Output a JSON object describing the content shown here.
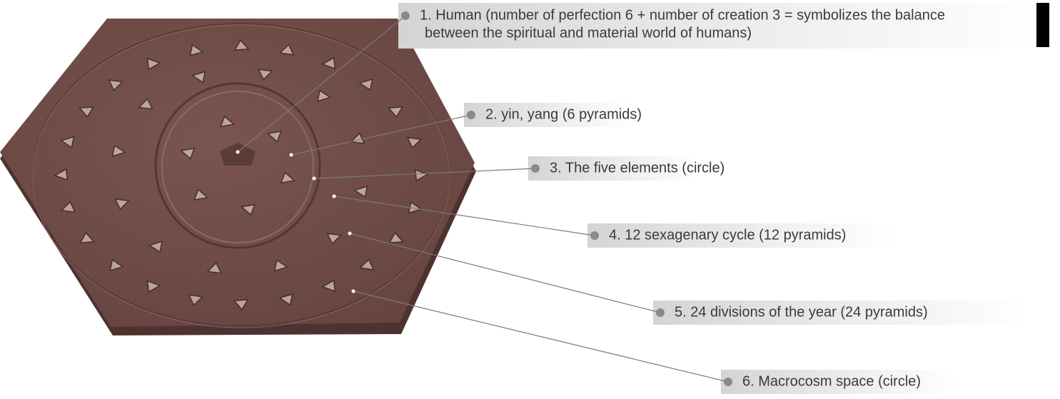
{
  "callouts": [
    {
      "lines": [
        "1. Human (number of perfection 6 + number of creation 3 = symbolizes the balance",
        "between the spiritual and material world of humans)"
      ]
    },
    {
      "lines": [
        "2. yin, yang (6 pyramids)"
      ]
    },
    {
      "lines": [
        "3. The five elements (circle)"
      ]
    },
    {
      "lines": [
        "4. 12 sexagenary cycle (12 pyramids)"
      ]
    },
    {
      "lines": [
        "5. 24 divisions of the year (24 pyramids)"
      ]
    },
    {
      "lines": [
        "6. Macrocosm space (circle)"
      ]
    }
  ]
}
